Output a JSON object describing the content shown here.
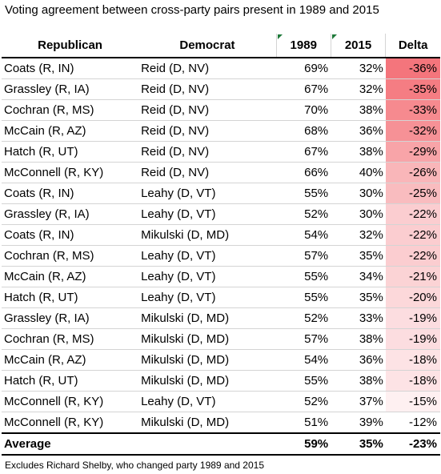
{
  "title": "Voting agreement between cross-party pairs present in 1989 and 2015",
  "headers": {
    "republican": "Republican",
    "democrat": "Democrat",
    "y1989": "1989",
    "y2015": "2015",
    "delta": "Delta"
  },
  "rows": [
    {
      "rep": "Coats (R, IN)",
      "dem": "Reid (D, NV)",
      "y1989": "69%",
      "y2015": "32%",
      "delta": "-36%",
      "color": "#f4757c"
    },
    {
      "rep": "Grassley (R, IA)",
      "dem": "Reid (D, NV)",
      "y1989": "67%",
      "y2015": "32%",
      "delta": "-35%",
      "color": "#f57d83"
    },
    {
      "rep": "Cochran (R, MS)",
      "dem": "Reid (D, NV)",
      "y1989": "70%",
      "y2015": "38%",
      "delta": "-33%",
      "color": "#f68a8f"
    },
    {
      "rep": "McCain (R, AZ)",
      "dem": "Reid (D, NV)",
      "y1989": "68%",
      "y2015": "36%",
      "delta": "-32%",
      "color": "#f69196"
    },
    {
      "rep": "Hatch (R, UT)",
      "dem": "Reid (D, NV)",
      "y1989": "67%",
      "y2015": "38%",
      "delta": "-29%",
      "color": "#f8a4a8"
    },
    {
      "rep": "McConnell (R, KY)",
      "dem": "Reid (D, NV)",
      "y1989": "66%",
      "y2015": "40%",
      "delta": "-26%",
      "color": "#f9b6b9"
    },
    {
      "rep": "Coats (R, IN)",
      "dem": "Leahy (D, VT)",
      "y1989": "55%",
      "y2015": "30%",
      "delta": "-25%",
      "color": "#f9bcbf"
    },
    {
      "rep": "Grassley (R, IA)",
      "dem": "Leahy (D, VT)",
      "y1989": "52%",
      "y2015": "30%",
      "delta": "-22%",
      "color": "#fbcdd0"
    },
    {
      "rep": "Coats (R, IN)",
      "dem": "Mikulski (D, MD)",
      "y1989": "54%",
      "y2015": "32%",
      "delta": "-22%",
      "color": "#fbcdd0"
    },
    {
      "rep": "Cochran (R, MS)",
      "dem": "Leahy (D, VT)",
      "y1989": "57%",
      "y2015": "35%",
      "delta": "-22%",
      "color": "#fbcdd0"
    },
    {
      "rep": "McCain (R, AZ)",
      "dem": "Leahy (D, VT)",
      "y1989": "55%",
      "y2015": "34%",
      "delta": "-21%",
      "color": "#fbd3d5"
    },
    {
      "rep": "Hatch (R, UT)",
      "dem": "Leahy (D, VT)",
      "y1989": "55%",
      "y2015": "35%",
      "delta": "-20%",
      "color": "#fcd8da"
    },
    {
      "rep": "Grassley (R, IA)",
      "dem": "Mikulski (D, MD)",
      "y1989": "52%",
      "y2015": "33%",
      "delta": "-19%",
      "color": "#fcdde0"
    },
    {
      "rep": "Cochran (R, MS)",
      "dem": "Mikulski (D, MD)",
      "y1989": "57%",
      "y2015": "38%",
      "delta": "-19%",
      "color": "#fcdde0"
    },
    {
      "rep": "McCain (R, AZ)",
      "dem": "Mikulski (D, MD)",
      "y1989": "54%",
      "y2015": "36%",
      "delta": "-18%",
      "color": "#fde3e5"
    },
    {
      "rep": "Hatch (R, UT)",
      "dem": "Mikulski (D, MD)",
      "y1989": "55%",
      "y2015": "38%",
      "delta": "-18%",
      "color": "#fde3e5"
    },
    {
      "rep": "McConnell (R, KY)",
      "dem": "Leahy (D, VT)",
      "y1989": "52%",
      "y2015": "37%",
      "delta": "-15%",
      "color": "#fef0f1"
    },
    {
      "rep": "McConnell (R, KY)",
      "dem": "Mikulski (D, MD)",
      "y1989": "51%",
      "y2015": "39%",
      "delta": "-12%",
      "color": "#ffffff"
    }
  ],
  "average": {
    "label": "Average",
    "y1989": "59%",
    "y2015": "35%",
    "delta": "-23%"
  },
  "note": "Excludes Richard Shelby, who changed party 1989 and 2015"
}
